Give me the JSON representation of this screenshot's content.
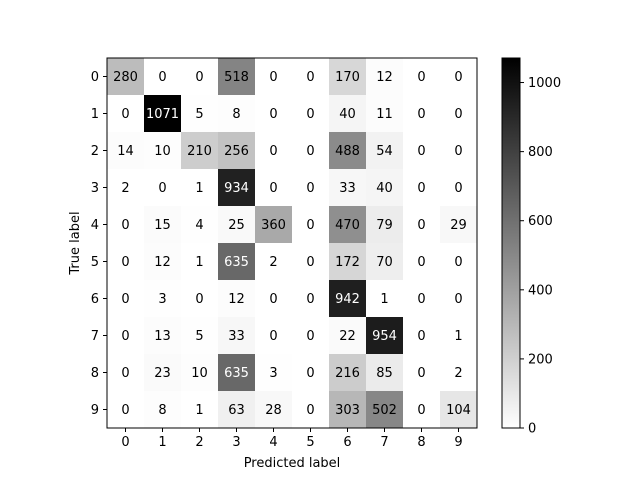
{
  "chart_data": {
    "type": "heatmap",
    "title": "",
    "xlabel": "Predicted label",
    "ylabel": "True label",
    "x_categories": [
      "0",
      "1",
      "2",
      "3",
      "4",
      "5",
      "6",
      "7",
      "8",
      "9"
    ],
    "y_categories": [
      "0",
      "1",
      "2",
      "3",
      "4",
      "5",
      "6",
      "7",
      "8",
      "9"
    ],
    "matrix": [
      [
        280,
        0,
        0,
        518,
        0,
        0,
        170,
        12,
        0,
        0
      ],
      [
        0,
        1071,
        5,
        8,
        0,
        0,
        40,
        11,
        0,
        0
      ],
      [
        14,
        10,
        210,
        256,
        0,
        0,
        488,
        54,
        0,
        0
      ],
      [
        2,
        0,
        1,
        934,
        0,
        0,
        33,
        40,
        0,
        0
      ],
      [
        0,
        15,
        4,
        25,
        360,
        0,
        470,
        79,
        0,
        29
      ],
      [
        0,
        12,
        1,
        635,
        2,
        0,
        172,
        70,
        0,
        0
      ],
      [
        0,
        3,
        0,
        12,
        0,
        0,
        942,
        1,
        0,
        0
      ],
      [
        0,
        13,
        5,
        33,
        0,
        0,
        22,
        954,
        0,
        1
      ],
      [
        0,
        23,
        10,
        635,
        3,
        0,
        216,
        85,
        0,
        2
      ],
      [
        0,
        8,
        1,
        63,
        28,
        0,
        303,
        502,
        0,
        104
      ]
    ],
    "colormap": "Greys",
    "color_min": 0,
    "color_max": 1071,
    "colorbar_ticks": [
      0,
      200,
      400,
      600,
      800,
      1000
    ],
    "grid": false
  }
}
